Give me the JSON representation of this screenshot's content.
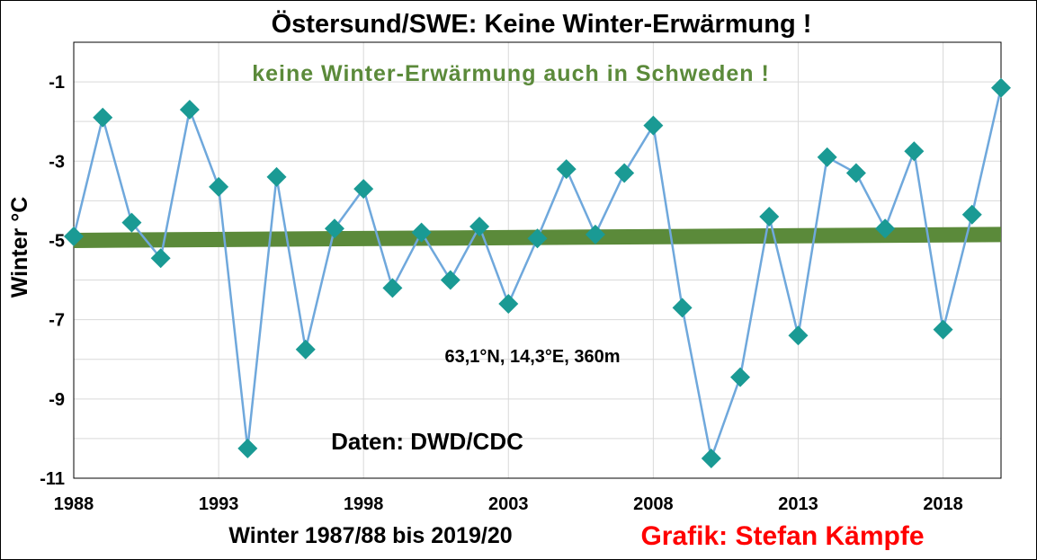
{
  "chart_data": {
    "type": "line",
    "title": "Östersund/SWE:  Keine Winter-Erwärmung  !",
    "annotation_top": "keine  Winter-Erwärmung  auch  in  Schweden  !",
    "annotation_coords": "63,1°N, 14,3°E, 360m",
    "annotation_source": "Daten: DWD/CDC",
    "credit": "Grafik: Stefan Kämpfe",
    "xlabel": "Winter 1987/88 bis 2019/20",
    "ylabel": "Winter °C",
    "xlim": [
      1988,
      2020
    ],
    "ylim": [
      -11,
      0
    ],
    "xticks": [
      1988,
      1993,
      1998,
      2003,
      2008,
      2013,
      2018
    ],
    "yticks": [
      -11,
      -9,
      -7,
      -5,
      -3,
      -1
    ],
    "grid": true,
    "colors": {
      "series": "#6fa8dc",
      "marker": "#1a9a94",
      "trend": "#5b8a3a",
      "credit": "#ff0000"
    },
    "series": [
      {
        "x": [
          1988,
          1989,
          1990,
          1991,
          1992,
          1993,
          1994,
          1995,
          1996,
          1997,
          1998,
          1999,
          2000,
          2001,
          2002,
          2003,
          2004,
          2005,
          2006,
          2007,
          2008,
          2009,
          2010,
          2011,
          2012,
          2013,
          2014,
          2015,
          2016,
          2017,
          2018,
          2019,
          2020
        ],
        "values": [
          -4.9,
          -1.9,
          -4.55,
          -5.45,
          -1.7,
          -3.65,
          -10.25,
          -3.4,
          -7.75,
          -4.7,
          -3.7,
          -6.2,
          -4.8,
          -6.0,
          -4.65,
          -6.6,
          -4.95,
          -3.2,
          -4.85,
          -3.3,
          -2.1,
          -6.7,
          -10.5,
          -8.45,
          -4.4,
          -7.4,
          -2.9,
          -3.3,
          -4.7,
          -2.75,
          -7.25,
          -4.35,
          -1.15
        ]
      }
    ],
    "trend": {
      "x": [
        1988,
        2020
      ],
      "values": [
        -5.0,
        -4.85
      ]
    }
  }
}
